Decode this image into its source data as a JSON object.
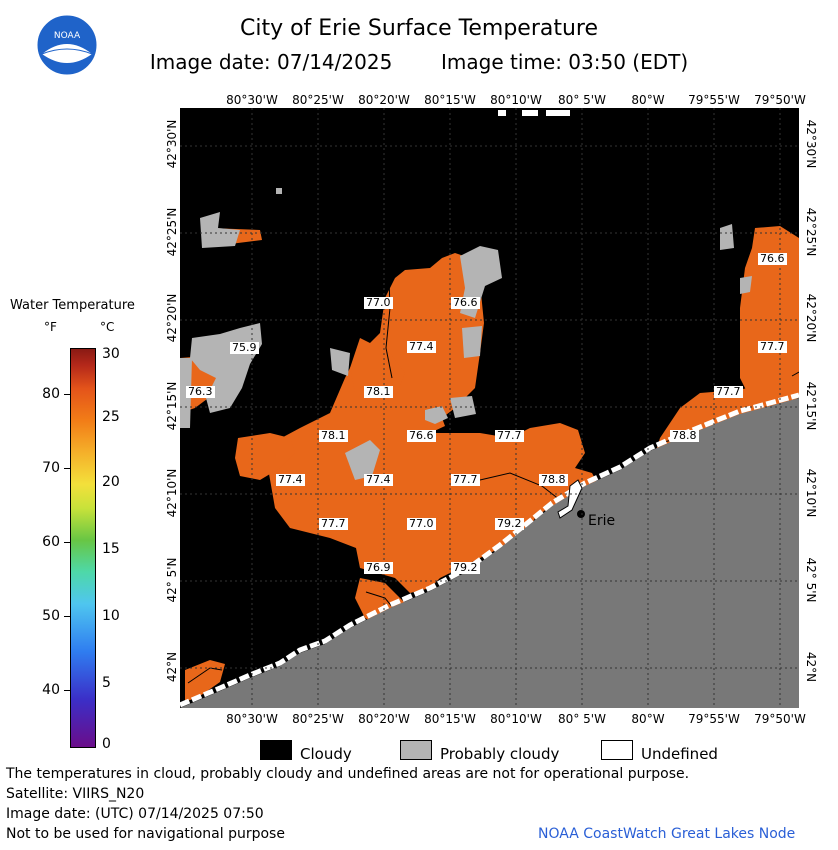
{
  "header": {
    "title": "City of Erie Surface Temperature",
    "subtitle_date": "Image date: 07/14/2025",
    "subtitle_time": "Image time: 03:50 (EDT)",
    "logo_text": "NOAA"
  },
  "lon_labels": [
    "80°30'W",
    "80°25'W",
    "80°20'W",
    "80°15'W",
    "80°10'W",
    "80° 5'W",
    "80°W",
    "79°55'W",
    "79°50'W"
  ],
  "lat_labels": [
    "42°30'N",
    "42°25'N",
    "42°20'N",
    "42°15'N",
    "42°10'N",
    "42° 5'N",
    "42°N"
  ],
  "temperature_labels": [
    {
      "value": "77.0"
    },
    {
      "value": "76.6"
    },
    {
      "value": "75.9"
    },
    {
      "value": "77.4"
    },
    {
      "value": "76.3"
    },
    {
      "value": "78.1"
    },
    {
      "value": "78.1"
    },
    {
      "value": "76.6"
    },
    {
      "value": "77.7"
    },
    {
      "value": "77.4"
    },
    {
      "value": "77.4"
    },
    {
      "value": "77.7"
    },
    {
      "value": "78.8"
    },
    {
      "value": "77.7"
    },
    {
      "value": "77.0"
    },
    {
      "value": "79.2"
    },
    {
      "value": "76.9"
    },
    {
      "value": "79.2"
    },
    {
      "value": "76.6"
    },
    {
      "value": "77.7"
    },
    {
      "value": "77.7"
    },
    {
      "value": "78.8"
    }
  ],
  "city_label": "Erie",
  "colorbar": {
    "title": "Water Temperature",
    "unit_f": "°F",
    "unit_c": "°C",
    "f_ticks": [
      "80",
      "70",
      "60",
      "50",
      "40"
    ],
    "c_ticks": [
      "30",
      "25",
      "20",
      "15",
      "10",
      "5",
      "0"
    ]
  },
  "legend": {
    "cloudy": "Cloudy",
    "probably_cloudy": "Probably cloudy",
    "undefined": "Undefined"
  },
  "notes": {
    "disclaimer": "The temperatures in cloud, probably cloudy and undefined areas are not for operational purpose.",
    "satellite": "Satellite: VIIRS_N20",
    "utc_date": "Image date: (UTC) 07/14/2025  07:50",
    "navigation": "Not to be used for navigational purpose"
  },
  "credit": "NOAA CoastWatch Great Lakes Node",
  "colors": {
    "water_warm": "#e8671a",
    "cloudy": "#000000",
    "probably_cloudy": "#b4b4b4",
    "land": "#787878",
    "undefined": "#ffffff",
    "credit": "#2a5fd6"
  }
}
